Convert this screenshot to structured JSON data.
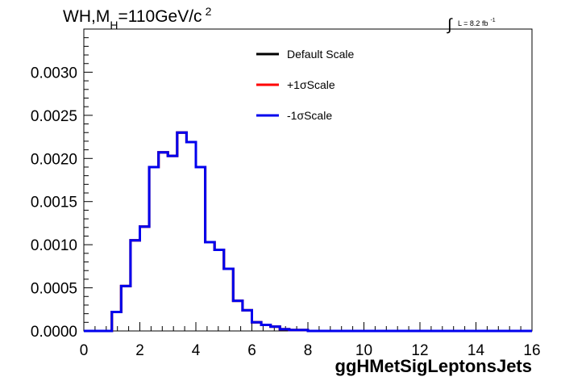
{
  "header": {
    "title_main": "WH,M",
    "title_sub": "H",
    "title_rest": "=110GeV/c",
    "title_sup": "2",
    "lumi_integral": "∫",
    "lumi_text": "L = 8.2 fb",
    "lumi_sup": "-1"
  },
  "chart_data": {
    "type": "line",
    "xlabel": "ggHMetSigLeptonsJets",
    "ylabel": "",
    "xlim": [
      0,
      16
    ],
    "ylim": [
      0,
      0.0035
    ],
    "x_ticks": [
      "0",
      "2",
      "4",
      "6",
      "8",
      "10",
      "12",
      "14",
      "16"
    ],
    "y_ticks": [
      "0.0000",
      "0.0005",
      "0.0010",
      "0.0015",
      "0.0020",
      "0.0025",
      "0.0030"
    ],
    "bin_width": 0.333333,
    "bin_edges_start": 0,
    "legend_position": "top-center",
    "series": [
      {
        "name": "Default Scale",
        "color": "#000000"
      },
      {
        "name": "+1σScale",
        "color": "#ff0000"
      },
      {
        "name": "-1σScale",
        "color": "#0000ee"
      }
    ],
    "values": [
      0,
      0,
      0,
      0.00022,
      0.00052,
      0.00105,
      0.00121,
      0.0019,
      0.00207,
      0.00203,
      0.0023,
      0.00219,
      0.0019,
      0.00103,
      0.00094,
      0.00072,
      0.00035,
      0.00024,
      0.0001,
      7e-05,
      5e-05,
      2e-05,
      1e-05,
      1e-05,
      0,
      0,
      0,
      0,
      0,
      0,
      0,
      0,
      0,
      0,
      0,
      0,
      0,
      0,
      0,
      0,
      0,
      0,
      0,
      0,
      0,
      0,
      0,
      0
    ]
  }
}
